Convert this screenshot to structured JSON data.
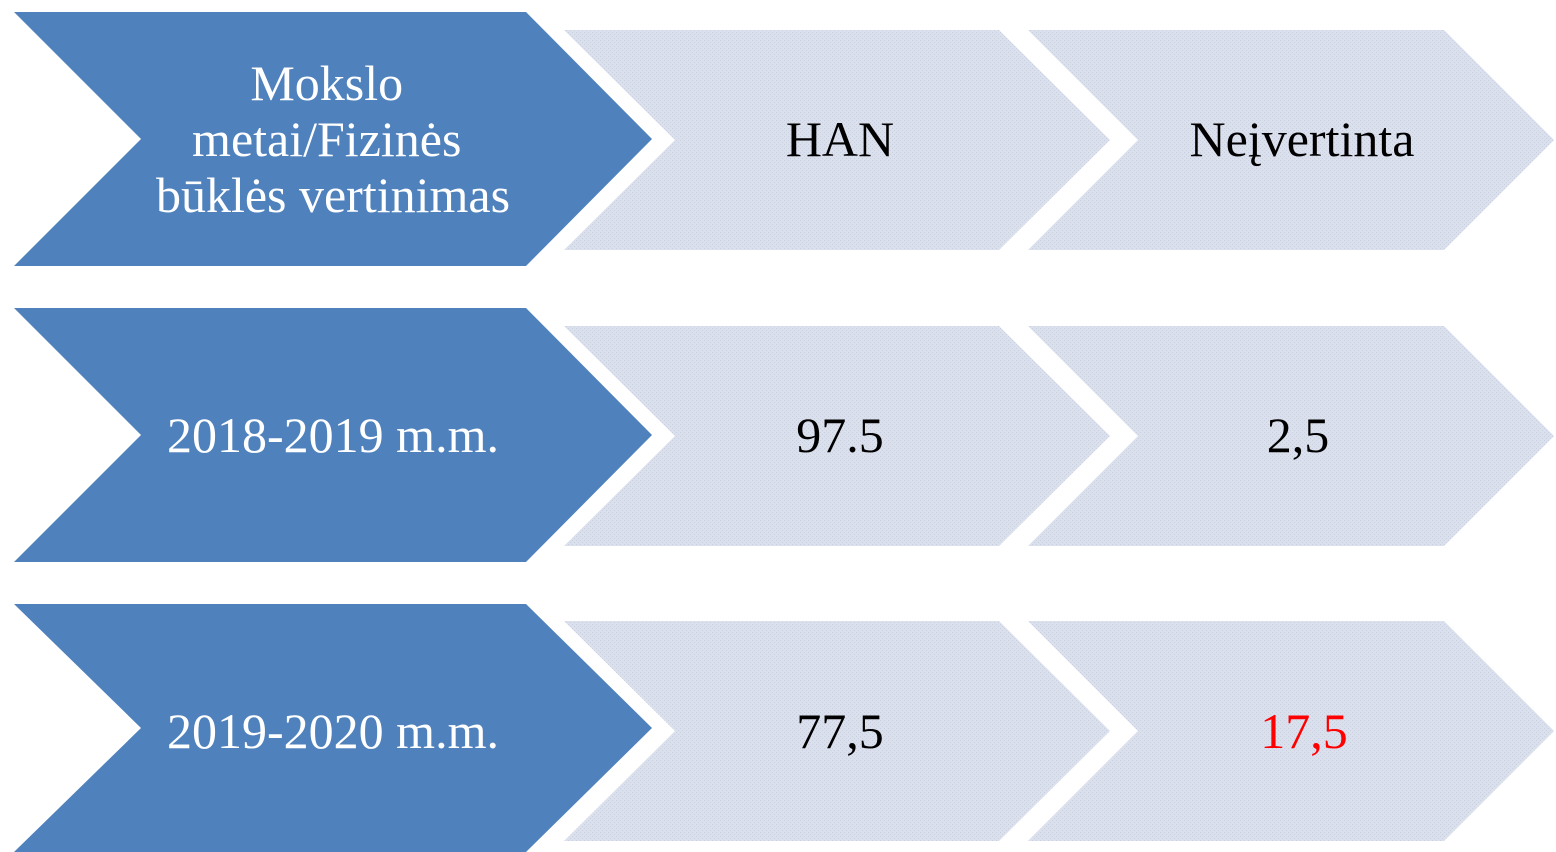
{
  "rows": [
    {
      "label_lines": [
        "Mokslo",
        "metai/Fizinės",
        "būklės vertinimas"
      ],
      "han": "HAN",
      "neivertinta": "Neįvertinta"
    },
    {
      "label_lines": [
        "2018-2019 m.m."
      ],
      "han": "97.5",
      "neivertinta": "2,5"
    },
    {
      "label_lines": [
        "2019-2020 m.m."
      ],
      "han": "77,5",
      "neivertinta": "17,5",
      "neivertinta_color": "#ff0000"
    }
  ],
  "colors": {
    "header_chevron": "#4f81bd",
    "value_chevron": "#dbe0ed",
    "header_text": "#ffffff",
    "value_text": "#000000",
    "highlight_text": "#ff0000"
  }
}
